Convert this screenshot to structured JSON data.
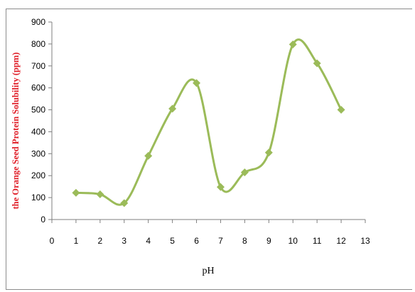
{
  "chart_data": {
    "type": "line",
    "x": [
      1,
      2,
      3,
      4,
      5,
      6,
      7,
      8,
      9,
      10,
      11,
      12
    ],
    "series": [
      {
        "values": [
          122,
          115,
          75,
          290,
          505,
          622,
          148,
          215,
          305,
          798,
          712,
          500
        ]
      }
    ],
    "xlabel": "pH",
    "ylabel": "the Orange Seed Protein Solubility (ppm)",
    "xlim": [
      0,
      13
    ],
    "ylim": [
      0,
      900
    ],
    "xticks": [
      "0",
      "1",
      "2",
      "3",
      "4",
      "5",
      "6",
      "7",
      "8",
      "9",
      "10",
      "11",
      "12",
      "13"
    ],
    "yticks": [
      "0",
      "100",
      "200",
      "300",
      "400",
      "500",
      "600",
      "700",
      "800",
      "900"
    ],
    "smooth": true,
    "marker": "diamond",
    "grid": false,
    "legend": "none",
    "colors": {
      "line": "#9bbb59",
      "marker": "#9bbb59",
      "ylabel": "#e0202a",
      "axis": "#7f7f7f"
    }
  }
}
